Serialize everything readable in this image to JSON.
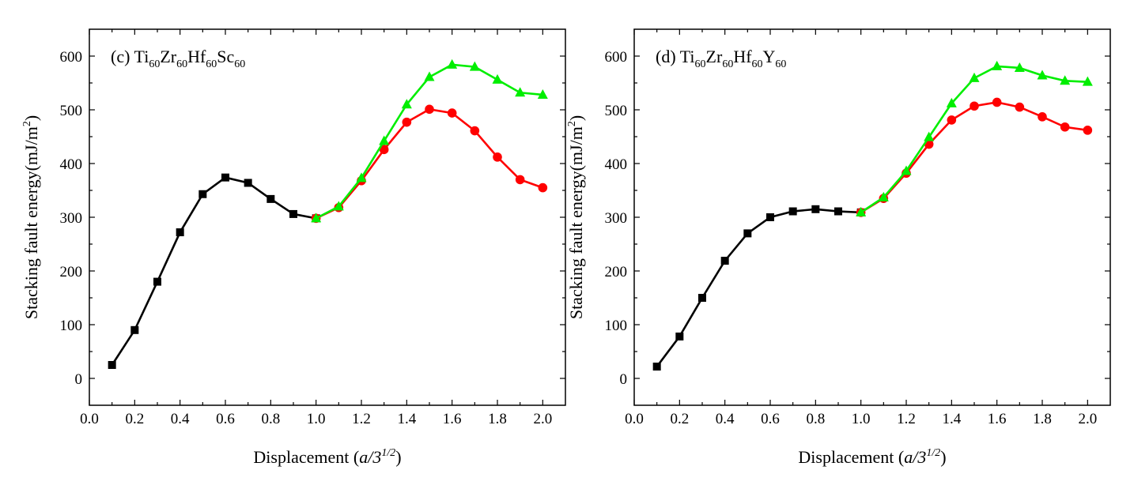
{
  "chart_data": [
    {
      "type": "line",
      "panel_label": "(c)",
      "title": {
        "base": "Ti",
        "parts": [
          {
            "sub": "60",
            "next": "Zr"
          },
          {
            "sub": "60",
            "next": "Hf"
          },
          {
            "sub": "60",
            "next": "Sc"
          },
          {
            "sub": "60",
            "next": ""
          }
        ]
      },
      "title_text": "(c) Ti60Zr60Hf60Sc60",
      "xlabel_main": "Displacement (",
      "xlabel_italic": "a/3",
      "xlabel_sup": "1/2",
      "xlabel_close": ")",
      "ylabel_main": "Stacking fault energy(mJ/m",
      "ylabel_sup": "2",
      "ylabel_close": ")",
      "xlim": [
        0.0,
        2.1
      ],
      "ylim": [
        -50,
        650
      ],
      "xticks": [
        0.0,
        0.2,
        0.4,
        0.6,
        0.8,
        1.0,
        1.2,
        1.4,
        1.6,
        1.8,
        2.0
      ],
      "xtick_labels": [
        "0.0",
        "0.2",
        "0.4",
        "0.6",
        "0.8",
        "1.0",
        "1.2",
        "1.4",
        "1.6",
        "1.8",
        "2.0"
      ],
      "yticks": [
        0,
        100,
        200,
        300,
        400,
        500,
        600
      ],
      "ytick_labels": [
        "0",
        "100",
        "200",
        "300",
        "400",
        "500",
        "600"
      ],
      "series": [
        {
          "name": "black-squares",
          "color": "#000000",
          "marker": "square",
          "x": [
            0.1,
            0.2,
            0.3,
            0.4,
            0.5,
            0.6,
            0.7,
            0.8,
            0.9,
            1.0
          ],
          "y": [
            25,
            90,
            180,
            272,
            343,
            374,
            364,
            334,
            306,
            298
          ]
        },
        {
          "name": "red-circles",
          "color": "#ff0000",
          "marker": "circle",
          "x": [
            1.0,
            1.1,
            1.2,
            1.3,
            1.4,
            1.5,
            1.6,
            1.7,
            1.8,
            1.9,
            2.0
          ],
          "y": [
            298,
            318,
            368,
            426,
            477,
            501,
            494,
            461,
            412,
            370,
            355
          ]
        },
        {
          "name": "green-triangles",
          "color": "#00ee00",
          "marker": "triangle",
          "x": [
            1.0,
            1.1,
            1.2,
            1.3,
            1.4,
            1.5,
            1.6,
            1.7,
            1.8,
            1.9,
            2.0
          ],
          "y": [
            298,
            320,
            373,
            442,
            510,
            561,
            584,
            580,
            556,
            532,
            528
          ]
        }
      ]
    },
    {
      "type": "line",
      "panel_label": "(d)",
      "title": {
        "base": "Ti",
        "parts": [
          {
            "sub": "60",
            "next": "Zr"
          },
          {
            "sub": "60",
            "next": "Hf"
          },
          {
            "sub": "60",
            "next": "Y"
          },
          {
            "sub": "60",
            "next": ""
          }
        ]
      },
      "title_text": "(d) Ti60Zr60Hf60Y60",
      "xlabel_main": "Displacement (",
      "xlabel_italic": "a/3",
      "xlabel_sup": "1/2",
      "xlabel_close": ")",
      "ylabel_main": "Stacking fault energy(mJ/m",
      "ylabel_sup": "2",
      "ylabel_close": ")",
      "xlim": [
        0.0,
        2.1
      ],
      "ylim": [
        -50,
        650
      ],
      "xticks": [
        0.0,
        0.2,
        0.4,
        0.6,
        0.8,
        1.0,
        1.2,
        1.4,
        1.6,
        1.8,
        2.0
      ],
      "xtick_labels": [
        "0.0",
        "0.2",
        "0.4",
        "0.6",
        "0.8",
        "1.0",
        "1.2",
        "1.4",
        "1.6",
        "1.8",
        "2.0"
      ],
      "yticks": [
        0,
        100,
        200,
        300,
        400,
        500,
        600
      ],
      "ytick_labels": [
        "0",
        "100",
        "200",
        "300",
        "400",
        "500",
        "600"
      ],
      "series": [
        {
          "name": "black-squares",
          "color": "#000000",
          "marker": "square",
          "x": [
            0.1,
            0.2,
            0.3,
            0.4,
            0.5,
            0.6,
            0.7,
            0.8,
            0.9,
            1.0
          ],
          "y": [
            22,
            78,
            150,
            219,
            270,
            300,
            311,
            315,
            311,
            309
          ]
        },
        {
          "name": "red-circles",
          "color": "#ff0000",
          "marker": "circle",
          "x": [
            1.0,
            1.1,
            1.2,
            1.3,
            1.4,
            1.5,
            1.6,
            1.7,
            1.8,
            1.9,
            2.0
          ],
          "y": [
            309,
            335,
            382,
            436,
            481,
            507,
            514,
            505,
            487,
            468,
            462
          ]
        },
        {
          "name": "green-triangles",
          "color": "#00ee00",
          "marker": "triangle",
          "x": [
            1.0,
            1.1,
            1.2,
            1.3,
            1.4,
            1.5,
            1.6,
            1.7,
            1.8,
            1.9,
            2.0
          ],
          "y": [
            309,
            337,
            386,
            449,
            512,
            559,
            581,
            578,
            564,
            554,
            552
          ]
        }
      ]
    }
  ]
}
